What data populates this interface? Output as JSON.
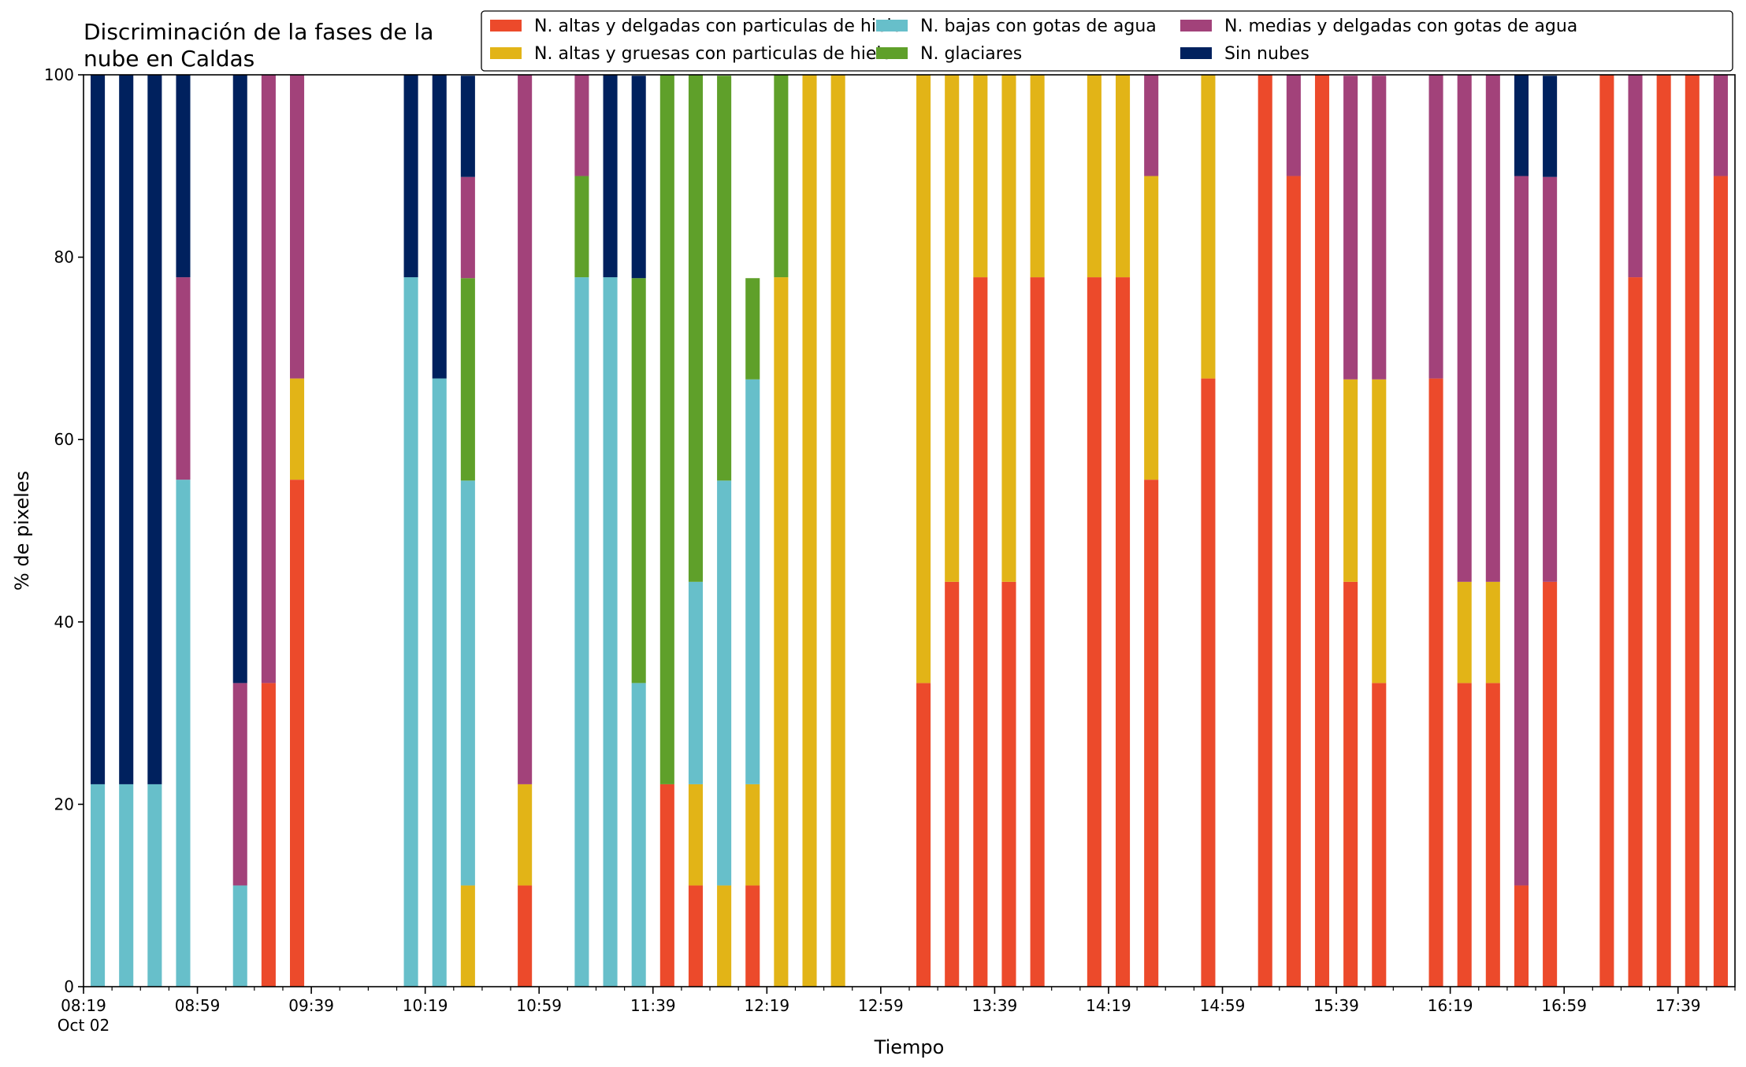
{
  "chart_data": {
    "type": "bar",
    "stacked": true,
    "title_lines": [
      "Discriminación de la fases de la",
      "nube en Caldas"
    ],
    "xlabel": "Tiempo",
    "ylabel": "% de pixeles",
    "ylim": [
      0,
      100
    ],
    "yticks": [
      0,
      20,
      40,
      60,
      80,
      100
    ],
    "grid": false,
    "legend_position": "top",
    "date_label": "Oct 02",
    "time_axis": {
      "start": "08:19",
      "end": "17:59",
      "major_ticks": [
        "08:19",
        "08:59",
        "09:39",
        "10:19",
        "10:59",
        "11:39",
        "12:19",
        "12:59",
        "13:39",
        "14:19",
        "14:59",
        "15:39",
        "16:19",
        "16:59",
        "17:39"
      ],
      "minor_tick_step_minutes": 10
    },
    "categories": [
      "08:24",
      "08:34",
      "08:44",
      "08:54",
      "09:14",
      "09:24",
      "09:34",
      "10:14",
      "10:24",
      "10:34",
      "10:54",
      "11:14",
      "11:24",
      "11:34",
      "11:44",
      "11:54",
      "12:04",
      "12:14",
      "12:24",
      "12:34",
      "12:44",
      "12:54",
      "13:14",
      "13:24",
      "13:34",
      "13:44",
      "13:54",
      "14:14",
      "14:24",
      "14:34",
      "14:54",
      "15:14",
      "15:24",
      "15:34",
      "15:44",
      "15:54",
      "16:14",
      "16:24",
      "16:34",
      "16:44",
      "16:54",
      "17:14",
      "17:24",
      "17:34",
      "17:44",
      "17:54"
    ],
    "series": [
      {
        "name": "N. altas y delgadas con particulas de hielo",
        "color": "#ec4a2b",
        "values": [
          0,
          0,
          0,
          0,
          0,
          33.3,
          55.6,
          0,
          0,
          0,
          11.1,
          0,
          0,
          0,
          22.2,
          11.1,
          0,
          11.1,
          0,
          0,
          0,
          0,
          33.3,
          44.4,
          77.8,
          44.4,
          77.8,
          77.8,
          77.8,
          55.6,
          66.7,
          100,
          88.9,
          100,
          44.4,
          33.3,
          66.7,
          33.3,
          33.3,
          11.1,
          44.4,
          100,
          77.8,
          100,
          100,
          88.9
        ]
      },
      {
        "name": "N. altas y gruesas con particulas de hielo",
        "color": "#e2b417",
        "values": [
          0,
          0,
          0,
          0,
          0,
          0,
          11.1,
          0,
          0,
          11.1,
          11.1,
          0,
          0,
          0,
          0,
          11.1,
          11.1,
          11.1,
          77.8,
          100,
          100,
          0,
          66.7,
          55.6,
          22.2,
          55.6,
          22.2,
          22.2,
          22.2,
          33.3,
          33.3,
          0,
          0,
          0,
          22.2,
          33.3,
          0,
          11.1,
          11.1,
          0,
          0,
          0,
          0,
          0,
          0,
          0
        ]
      },
      {
        "name": "N. bajas con gotas de agua",
        "color": "#67bfca",
        "values": [
          22.2,
          22.2,
          22.2,
          55.6,
          11.1,
          0,
          0,
          77.8,
          66.7,
          44.4,
          0,
          77.8,
          77.8,
          33.3,
          0,
          22.2,
          44.4,
          44.4,
          0,
          0,
          0,
          0,
          0,
          0,
          0,
          0,
          0,
          0,
          0,
          0,
          0,
          0,
          0,
          0,
          0,
          0,
          0,
          0,
          0,
          0,
          0,
          0,
          0,
          0,
          0,
          0
        ]
      },
      {
        "name": "N. glaciares",
        "color": "#5fa02a",
        "values": [
          0,
          0,
          0,
          0,
          0,
          0,
          0,
          0,
          0,
          22.2,
          0,
          11.1,
          0,
          44.4,
          77.8,
          55.6,
          44.4,
          11.1,
          22.2,
          0,
          0,
          0,
          0,
          0,
          0,
          0,
          0,
          0,
          0,
          0,
          0,
          0,
          0,
          0,
          0,
          0,
          0,
          0,
          0,
          0,
          0,
          0,
          0,
          0,
          0,
          0
        ]
      },
      {
        "name": "N. medias y delgadas con gotas de agua",
        "color": "#a2427a",
        "values": [
          0,
          0,
          0,
          22.2,
          22.2,
          66.7,
          33.3,
          0,
          0,
          11.1,
          77.8,
          11.1,
          0,
          0,
          0,
          0,
          0,
          0,
          0,
          0,
          0,
          0,
          0,
          0,
          0,
          0,
          0,
          0,
          0,
          11.1,
          0,
          0,
          11.1,
          0,
          33.3,
          33.3,
          33.3,
          55.6,
          55.6,
          77.8,
          44.4,
          0,
          22.2,
          0,
          0,
          11.1
        ]
      },
      {
        "name": "Sin nubes",
        "color": "#00215e",
        "values": [
          77.8,
          77.8,
          77.8,
          22.2,
          66.7,
          0,
          0,
          22.2,
          33.3,
          11.1,
          0,
          0,
          22.2,
          22.2,
          0,
          0,
          0,
          0,
          0,
          0,
          0,
          0,
          0,
          0,
          0,
          0,
          0,
          0,
          0,
          0,
          0,
          0,
          0,
          0,
          0,
          0,
          0,
          0,
          0,
          11.1,
          11.1,
          0,
          0,
          0,
          0,
          0
        ]
      }
    ]
  }
}
